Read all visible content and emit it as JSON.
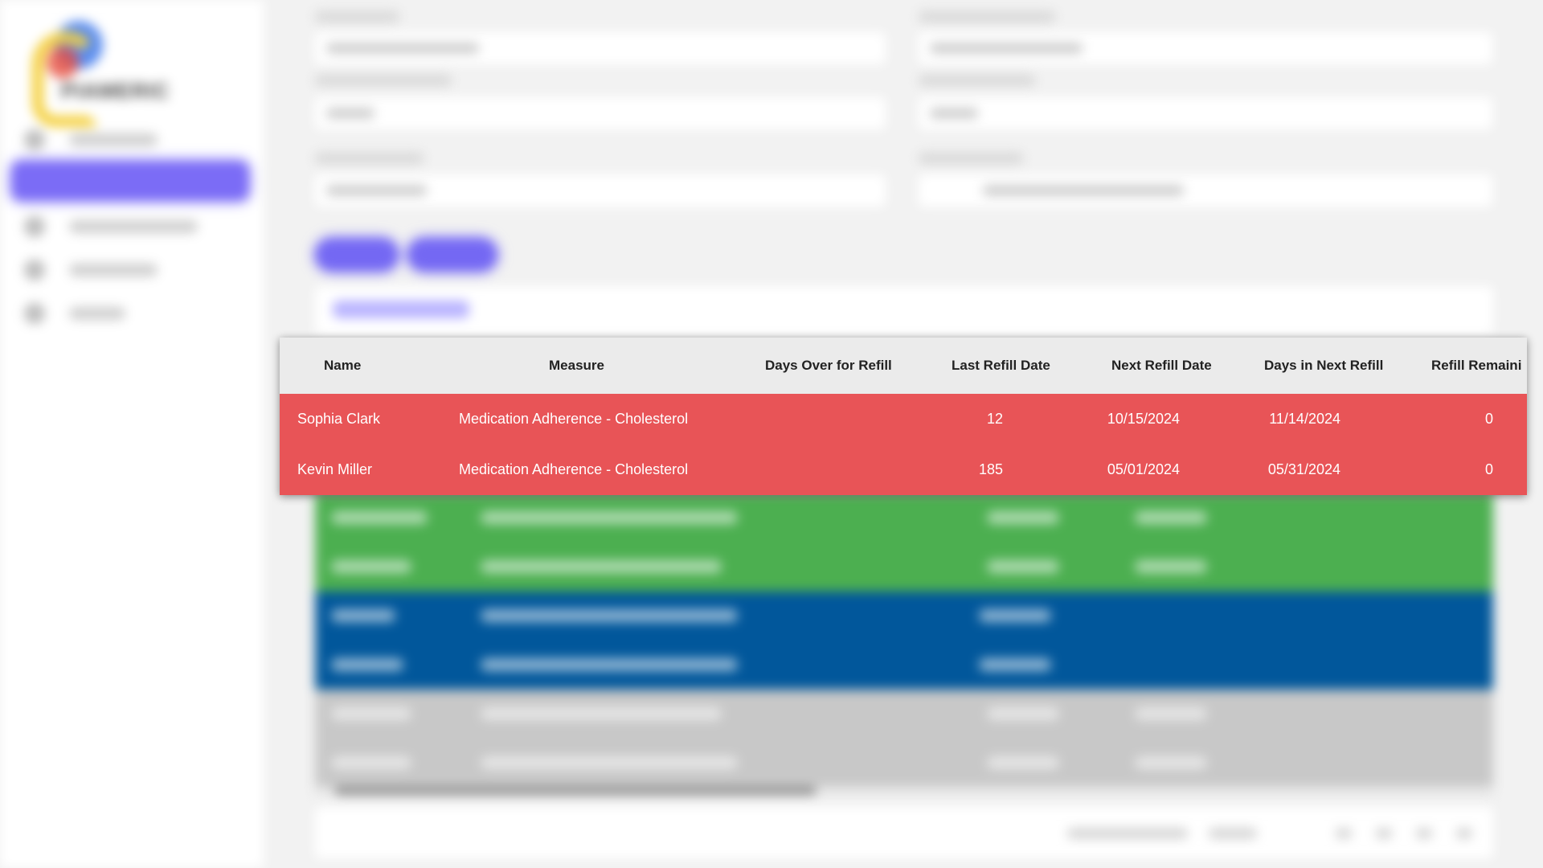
{
  "table": {
    "columns": [
      "Name",
      "Measure",
      "Days Over for Refill",
      "Last Refill Date",
      "Next Refill Date",
      "Days in Next Refill",
      "Refill Remaini"
    ],
    "rows": [
      {
        "name": "Sophia Clark",
        "measure": "Medication Adherence - Cholesterol",
        "days_over": "12",
        "last_refill": "10/15/2024",
        "next_refill": "11/14/2024",
        "days_next": "0"
      },
      {
        "name": "Kevin Miller",
        "measure": "Medication Adherence - Cholesterol",
        "days_over": "185",
        "last_refill": "05/01/2024",
        "next_refill": "05/31/2024",
        "days_next": "0"
      }
    ]
  },
  "colors": {
    "row_red": "#e85457",
    "row_green": "#4caf50",
    "row_blue": "#01579b",
    "row_gray": "#c8c8c8",
    "accent": "#7468f3"
  }
}
